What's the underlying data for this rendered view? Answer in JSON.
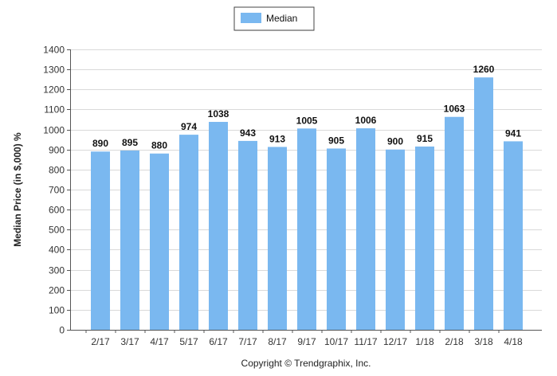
{
  "chart_data": {
    "type": "bar",
    "categories": [
      "2/17",
      "3/17",
      "4/17",
      "5/17",
      "6/17",
      "7/17",
      "8/17",
      "9/17",
      "10/17",
      "11/17",
      "12/17",
      "1/18",
      "2/18",
      "3/18",
      "4/18"
    ],
    "series": [
      {
        "name": "Median",
        "values": [
          890,
          895,
          880,
          974,
          1038,
          943,
          913,
          1005,
          905,
          1006,
          900,
          915,
          1063,
          1260,
          941
        ]
      }
    ],
    "data_labels": [
      "890",
      "895",
      "880",
      "974",
      "1038",
      "943",
      "913",
      "1005",
      "905",
      "1006",
      "900",
      "915",
      "1063",
      "1260",
      "941"
    ],
    "ylabel": "Median Price (in $,000) %",
    "xlabel": "",
    "ylim": [
      0,
      1400
    ],
    "yticks": [
      0,
      100,
      200,
      300,
      400,
      500,
      600,
      700,
      800,
      900,
      1000,
      1100,
      1200,
      1300,
      1400
    ],
    "grid": true,
    "legend_position": "top-center",
    "bar_color": "#7ab8f0",
    "copyright": "Copyright © Trendgraphix, Inc."
  }
}
